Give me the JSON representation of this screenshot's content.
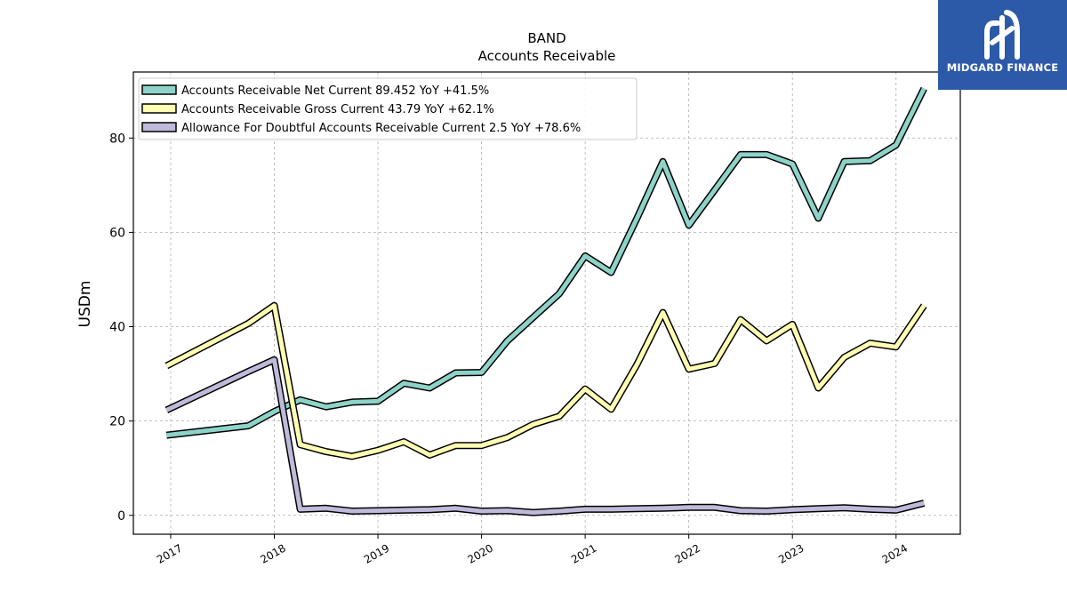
{
  "chart_data": {
    "type": "line",
    "title": "BAND",
    "subtitle": "Accounts Receivable",
    "ylabel": "USDm",
    "xlabel": "",
    "ylim": [
      -4,
      94
    ],
    "xlim": [
      2016.64,
      2024.62
    ],
    "yticks": [
      0,
      20,
      40,
      60,
      80
    ],
    "xticks": [
      "2017",
      "2018",
      "2019",
      "2020",
      "2021",
      "2022",
      "2023",
      "2024"
    ],
    "grid": true,
    "legend_position": "top-left",
    "series": [
      {
        "name": "Accounts Receivable Net Current  89.452 YoY +41.5%",
        "color": "#8dd3c7",
        "points": [
          [
            2016.96,
            17.0
          ],
          [
            2017.75,
            19.0
          ],
          [
            2018.0,
            22.0
          ],
          [
            2018.25,
            24.5
          ],
          [
            2018.5,
            23.0
          ],
          [
            2018.75,
            24.0
          ],
          [
            2019.0,
            24.2
          ],
          [
            2019.25,
            28.0
          ],
          [
            2019.5,
            27.0
          ],
          [
            2019.75,
            30.2
          ],
          [
            2020.0,
            30.3
          ],
          [
            2020.25,
            37.0
          ],
          [
            2020.5,
            42.0
          ],
          [
            2020.75,
            47.0
          ],
          [
            2021.0,
            55.0
          ],
          [
            2021.25,
            51.5
          ],
          [
            2021.5,
            63.0
          ],
          [
            2021.75,
            75.0
          ],
          [
            2022.0,
            61.5
          ],
          [
            2022.25,
            69.0
          ],
          [
            2022.5,
            76.5
          ],
          [
            2022.75,
            76.5
          ],
          [
            2023.0,
            74.5
          ],
          [
            2023.25,
            63.0
          ],
          [
            2023.5,
            75.0
          ],
          [
            2023.75,
            75.2
          ],
          [
            2024.0,
            78.5
          ],
          [
            2024.27,
            90.5
          ]
        ]
      },
      {
        "name": "Accounts Receivable Gross Current  43.79 YoY +62.1%",
        "color": "#ffffb3",
        "points": [
          [
            2016.96,
            31.7
          ],
          [
            2017.75,
            40.7
          ],
          [
            2018.0,
            44.5
          ],
          [
            2018.25,
            15.0
          ],
          [
            2018.5,
            13.5
          ],
          [
            2018.75,
            12.5
          ],
          [
            2019.0,
            13.8
          ],
          [
            2019.25,
            15.6
          ],
          [
            2019.5,
            12.8
          ],
          [
            2019.75,
            14.8
          ],
          [
            2020.0,
            14.8
          ],
          [
            2020.25,
            16.5
          ],
          [
            2020.5,
            19.3
          ],
          [
            2020.75,
            21.0
          ],
          [
            2021.0,
            26.8
          ],
          [
            2021.25,
            22.5
          ],
          [
            2021.5,
            32.0
          ],
          [
            2021.75,
            43.0
          ],
          [
            2022.0,
            31.0
          ],
          [
            2022.25,
            32.2
          ],
          [
            2022.5,
            41.5
          ],
          [
            2022.75,
            37.0
          ],
          [
            2023.0,
            40.5
          ],
          [
            2023.25,
            27.0
          ],
          [
            2023.5,
            33.5
          ],
          [
            2023.75,
            36.5
          ],
          [
            2024.0,
            35.7
          ],
          [
            2024.27,
            44.5
          ]
        ]
      },
      {
        "name": "Allowance For Doubtful Accounts Receivable Current  2.5 YoY +78.6%",
        "color": "#bebada",
        "points": [
          [
            2016.96,
            22.3
          ],
          [
            2017.75,
            30.5
          ],
          [
            2018.0,
            33.0
          ],
          [
            2018.25,
            1.3
          ],
          [
            2018.5,
            1.5
          ],
          [
            2018.75,
            0.9
          ],
          [
            2019.0,
            1.0
          ],
          [
            2019.25,
            1.1
          ],
          [
            2019.5,
            1.2
          ],
          [
            2019.75,
            1.5
          ],
          [
            2020.0,
            0.9
          ],
          [
            2020.25,
            1.0
          ],
          [
            2020.5,
            0.6
          ],
          [
            2020.75,
            0.9
          ],
          [
            2021.0,
            1.3
          ],
          [
            2021.25,
            1.3
          ],
          [
            2021.5,
            1.4
          ],
          [
            2021.75,
            1.5
          ],
          [
            2022.0,
            1.7
          ],
          [
            2022.25,
            1.7
          ],
          [
            2022.5,
            1.0
          ],
          [
            2022.75,
            0.9
          ],
          [
            2023.0,
            1.2
          ],
          [
            2023.25,
            1.4
          ],
          [
            2023.5,
            1.6
          ],
          [
            2023.75,
            1.3
          ],
          [
            2024.0,
            1.1
          ],
          [
            2024.27,
            2.6
          ]
        ]
      }
    ]
  },
  "logo": {
    "text": "MIDGARD FINANCE",
    "icon": "midgard-logo-icon",
    "background": "#2d5aa8"
  }
}
